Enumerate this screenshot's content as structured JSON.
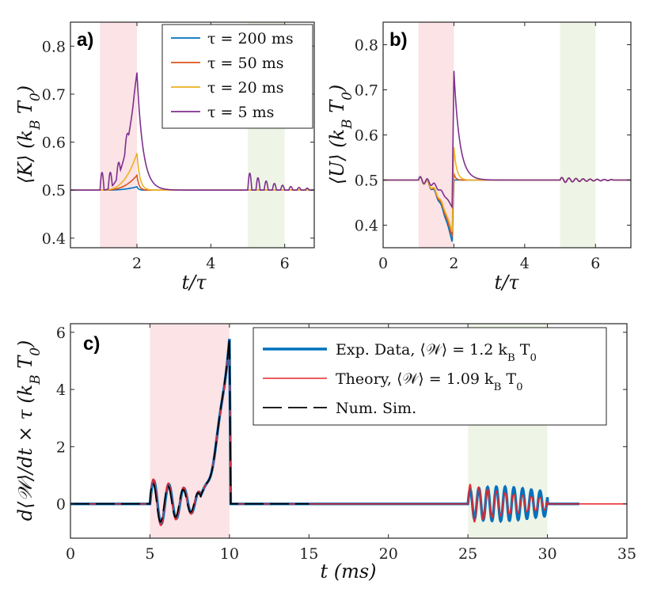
{
  "chart_data": [
    {
      "panel": "a)",
      "type": "line",
      "xlabel": "t/τ",
      "ylabel": "⟨K⟩ (k_B T_0)",
      "xlim": [
        0.2,
        6.8
      ],
      "ylim": [
        0.38,
        0.85
      ],
      "xticks": [
        2,
        4,
        6
      ],
      "xtick_labels": [
        "2",
        "4",
        "6"
      ],
      "yticks": [
        0.4,
        0.5,
        0.6,
        0.7,
        0.8
      ],
      "ytick_labels": [
        "0.4",
        "0.5",
        "0.6",
        "0.7",
        "0.8"
      ],
      "shaded_regions": [
        {
          "x": [
            1,
            2
          ],
          "color": "#fbe3e6"
        },
        {
          "x": [
            5,
            6
          ],
          "color": "#eef4e6"
        }
      ],
      "legend": {
        "placement": "top-right",
        "entries": [
          "τ = 200 ms",
          "τ = 50 ms",
          "τ = 20 ms",
          "τ = 5 ms"
        ]
      },
      "series": [
        {
          "name": "τ = 200 ms",
          "color": "#0072bd",
          "baseline": 0.5,
          "peak": 0.507,
          "osc1": 0.0,
          "osc2": 0.0
        },
        {
          "name": "τ = 50 ms",
          "color": "#d95319",
          "baseline": 0.5,
          "peak": 0.531,
          "osc1": 0.0,
          "osc2": 0.0
        },
        {
          "name": "τ = 20 ms",
          "color": "#edb120",
          "baseline": 0.5,
          "peak": 0.577,
          "osc1": 0.0,
          "osc2": 0.0
        },
        {
          "name": "τ = 5 ms",
          "color": "#7e2f8e",
          "baseline": 0.5,
          "peak": 0.745,
          "osc1": 0.038,
          "osc2": 0.038
        }
      ]
    },
    {
      "panel": "b)",
      "type": "line",
      "xlabel": "t/τ",
      "ylabel": "⟨U⟩ (k_B T_0)",
      "xlim": [
        0,
        7
      ],
      "ylim": [
        0.35,
        0.85
      ],
      "xticks": [
        0,
        2,
        4,
        6
      ],
      "xtick_labels": [
        "0",
        "2",
        "4",
        "6"
      ],
      "yticks": [
        0.4,
        0.5,
        0.6,
        0.7,
        0.8
      ],
      "ytick_labels": [
        "0.4",
        "0.5",
        "0.6",
        "0.7",
        "0.8"
      ],
      "shaded_regions": [
        {
          "x": [
            1,
            2
          ],
          "color": "#fbe3e6"
        },
        {
          "x": [
            5,
            6
          ],
          "color": "#eef4e6"
        }
      ],
      "series": [
        {
          "name": "τ = 200 ms",
          "color": "#0072bd",
          "baseline": 0.5,
          "min": 0.363,
          "peak": 0.5
        },
        {
          "name": "τ = 50 ms",
          "color": "#d95319",
          "baseline": 0.5,
          "min": 0.375,
          "peak": 0.515
        },
        {
          "name": "τ = 20 ms",
          "color": "#edb120",
          "baseline": 0.5,
          "min": 0.385,
          "peak": 0.573
        },
        {
          "name": "τ = 5 ms",
          "color": "#7e2f8e",
          "baseline": 0.5,
          "min": 0.44,
          "peak": 0.742
        }
      ]
    },
    {
      "panel": "c)",
      "type": "line",
      "xlabel": "t (ms)",
      "ylabel": "d⟨𝒲⟩/dt × τ (k_B T_0)",
      "xlim": [
        0,
        35
      ],
      "ylim": [
        -1.2,
        6.3
      ],
      "xticks": [
        0,
        5,
        10,
        15,
        20,
        25,
        30,
        35
      ],
      "xtick_labels": [
        "0",
        "5",
        "10",
        "15",
        "20",
        "25",
        "30",
        "35"
      ],
      "yticks": [
        0,
        2,
        4,
        6
      ],
      "ytick_labels": [
        "0",
        "2",
        "4",
        "6"
      ],
      "shaded_regions": [
        {
          "x": [
            5,
            10
          ],
          "color": "#fbe3e6"
        },
        {
          "x": [
            25,
            30
          ],
          "color": "#eef4e6"
        }
      ],
      "legend": {
        "placement": "top-right",
        "entries": [
          "Exp. Data, ⟨𝒲⟩ = 1.2 k_B T_0",
          "Theory, ⟨𝒲⟩ = 1.09 k_B T_0",
          "Num. Sim."
        ]
      },
      "series": [
        {
          "name": "Exp. Data",
          "color": "#0072bd",
          "x_end": 32,
          "peak": 5.85,
          "osc_amp": 0.85
        },
        {
          "name": "Theory",
          "color": "#e8262b",
          "x_end": 35,
          "peak": 5.8,
          "osc_amp": 0.9
        },
        {
          "name": "Num. Sim.",
          "color": "#000000",
          "x_end": 15,
          "peak": 5.9,
          "osc_amp": 0.75
        }
      ]
    }
  ],
  "labels": {
    "a_panel": "a)",
    "b_panel": "b)",
    "c_panel": "c)",
    "a_ylabel": "⟨K⟩ (k_B T_0)",
    "b_ylabel": "⟨U⟩ (k_B T_0)",
    "ab_xlabel": "t/τ",
    "c_xlabel": "t (ms)",
    "c_ylabel": "d⟨𝒲⟩/dt × τ (k_B T_0)",
    "legend_a": [
      "τ = 200 ms",
      "τ = 50 ms",
      "τ = 20 ms",
      "τ = 5 ms"
    ],
    "legend_c": [
      "Exp. Data, ⟨𝒲⟩ = 1.2 k_B T_0",
      "Theory, ⟨𝒲⟩ = 1.09 k_B T_0",
      "Num. Sim."
    ]
  }
}
